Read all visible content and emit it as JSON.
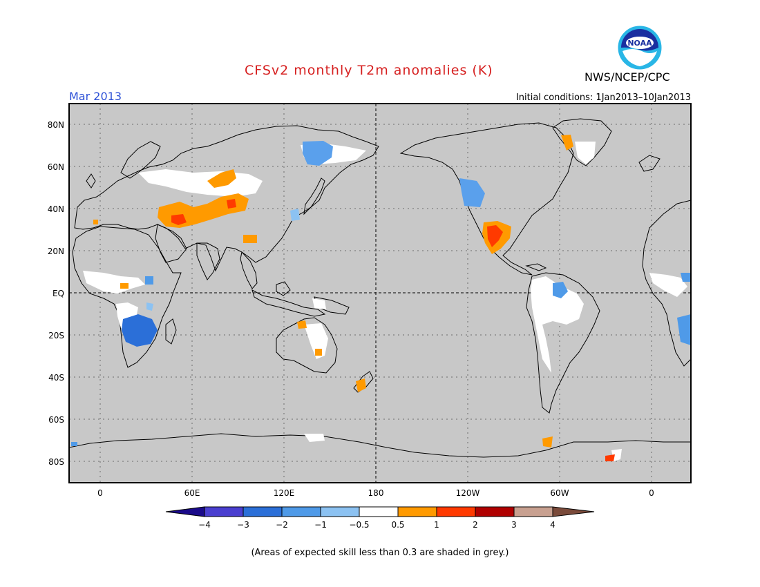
{
  "header": {
    "title": "CFSv2 monthly T2m anomalies (K)",
    "agency": "NWS/NCEP/CPC",
    "logo_text": "NOAA",
    "month": "Mar 2013",
    "initial_conditions": "Initial conditions: 1Jan2013–10Jan2013"
  },
  "map": {
    "projection": "equirectangular",
    "lon_range": [
      -20,
      380
    ],
    "lat_range": [
      -90,
      90
    ],
    "background_color": "#c8c8c8",
    "land_outline_color": "#000000",
    "lat_labels": [
      "80N",
      "60N",
      "40N",
      "20N",
      "EQ",
      "20S",
      "40S",
      "60S",
      "80S"
    ],
    "lon_labels": [
      "0",
      "60E",
      "120E",
      "180",
      "120W",
      "60W",
      "0"
    ],
    "reference_lines": [
      "equator",
      "180"
    ]
  },
  "colorbar": {
    "tick_labels": [
      "−4",
      "−3",
      "−2",
      "−1",
      "−0.5",
      "0.5",
      "1",
      "2",
      "3",
      "4"
    ],
    "colors": [
      "#1a0a8a",
      "#4a3fd0",
      "#2b6fd8",
      "#4f9ae8",
      "#8cc2f2",
      "#ffffff",
      "#ff9a00",
      "#ff3a00",
      "#b00000",
      "#c8a090",
      "#7a4a3a"
    ]
  },
  "footnote": "(Areas of expected skill less than 0.3 are shaded in grey.)"
}
